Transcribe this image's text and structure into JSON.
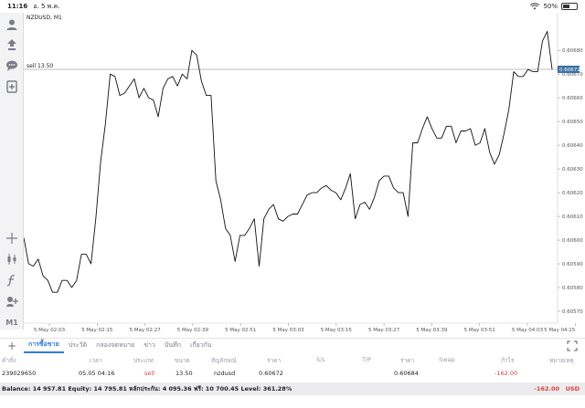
{
  "status_bar": {
    "time": "11:16",
    "date": "อ. 5 พ.ค.",
    "battery": "50%",
    "battery_level": 0.5
  },
  "toolbar": {
    "timeframe_label": "M1",
    "icons": [
      "account-icon",
      "trade-icon",
      "chat-icon",
      "new-order-icon",
      "crosshair-icon",
      "candle-type-icon",
      "indicator-icon",
      "objects-icon",
      "timeframe-icon"
    ]
  },
  "chart": {
    "symbol_title": "NZDUSD, M1",
    "sell_line_label": "sell 13.50",
    "current_price_label": "0.60672"
  },
  "chart_data": {
    "type": "line",
    "x_ticks": [
      "5 May 02:03",
      "5 May 02:15",
      "5 May 02:27",
      "5 May 02:39",
      "5 May 02:51",
      "5 May 03:03",
      "5 May 03:15",
      "5 May 03:27",
      "5 May 03:39",
      "5 May 03:51",
      "5 May 04:03",
      "5 May 04:15"
    ],
    "y_ticks": [
      "0.60680",
      "0.60670",
      "0.60660",
      "0.60650",
      "0.60640",
      "0.60630",
      "0.60620",
      "0.60610",
      "0.60600",
      "0.60590",
      "0.60580",
      "0.60570"
    ],
    "ylim": [
      0.60565,
      0.60692
    ],
    "sell_level": 0.60672,
    "values": [
      0.60601,
      0.6059,
      0.60589,
      0.60592,
      0.60585,
      0.60583,
      0.60578,
      0.60578,
      0.60583,
      0.60583,
      0.6058,
      0.60583,
      0.60594,
      0.60594,
      0.6059,
      0.60609,
      0.60633,
      0.60649,
      0.6067,
      0.60669,
      0.60661,
      0.60662,
      0.60665,
      0.60668,
      0.6066,
      0.60664,
      0.6066,
      0.60659,
      0.60652,
      0.60664,
      0.60668,
      0.60669,
      0.60665,
      0.6067,
      0.60668,
      0.6068,
      0.60678,
      0.60667,
      0.60661,
      0.60661,
      0.60625,
      0.60617,
      0.60605,
      0.60602,
      0.60591,
      0.60602,
      0.60602,
      0.60605,
      0.60609,
      0.60589,
      0.60609,
      0.60613,
      0.60615,
      0.60609,
      0.60608,
      0.6061,
      0.60611,
      0.60611,
      0.60615,
      0.60619,
      0.6062,
      0.6062,
      0.60622,
      0.60623,
      0.60621,
      0.6062,
      0.60617,
      0.60622,
      0.60628,
      0.60609,
      0.60615,
      0.60616,
      0.60613,
      0.60618,
      0.60625,
      0.60627,
      0.60627,
      0.60622,
      0.6062,
      0.6062,
      0.6061,
      0.60641,
      0.60641,
      0.60647,
      0.60652,
      0.60647,
      0.60643,
      0.60643,
      0.60648,
      0.60648,
      0.60641,
      0.60646,
      0.60646,
      0.60647,
      0.6064,
      0.60641,
      0.60647,
      0.60637,
      0.60632,
      0.60636,
      0.60645,
      0.60655,
      0.60671,
      0.60669,
      0.60669,
      0.60672,
      0.60671,
      0.60671,
      0.60684,
      0.60688,
      0.60672
    ]
  },
  "tabs": {
    "items": [
      "การซื้อขาย",
      "ประวัติ",
      "กล่องจดหมาย",
      "ข่าว",
      "บันทึก",
      "เกี่ยวกับ"
    ],
    "active_index": 0
  },
  "table": {
    "headers": {
      "order": "คำสั่ง",
      "time": "เวลา",
      "type": "ประเภท",
      "volume": "ขนาด",
      "symbol": "สัญลักษณ์",
      "price": "ราคา",
      "sl": "S/L",
      "tp": "T/P",
      "current_price": "ราคา",
      "swap": "Swap",
      "profit": "กำไร",
      "comment": "หมายเหตุ"
    },
    "rows": [
      {
        "order": "239029650",
        "time": "05.05 04:16",
        "type": "sell",
        "volume": "13.50",
        "symbol": "nzdusd",
        "price": "0.60672",
        "sl": "",
        "tp": "",
        "current_price": "0.60684",
        "swap": "",
        "profit": "-162.00",
        "comment": ""
      }
    ]
  },
  "balance": {
    "text": "Balance: 14 957.81  Equity: 14 795.81  หลักประกัน: 4 095.36  ฟรี: 10 700.45  Level: 361.28%",
    "total": "-162.00",
    "currency": "USD"
  },
  "colors": {
    "accent": "#2f7de1",
    "loss": "#e23b3b",
    "price_tag": "#3a6ea5"
  }
}
